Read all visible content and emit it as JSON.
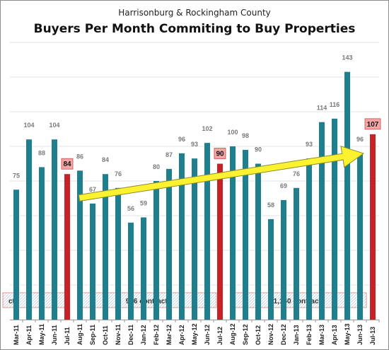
{
  "chart_data": {
    "type": "bar",
    "title": "Buyers Per Month Commiting to Buy Properties",
    "subtitle": "Harrisonburg & Rockingham County",
    "categories": [
      "Mar-11",
      "Apr-11",
      "May-11",
      "Jun-11",
      "Jul-11",
      "Aug-11",
      "Sep-11",
      "Oct-11",
      "Nov-11",
      "Dec-11",
      "Jan-12",
      "Feb-12",
      "Mar-12",
      "Apr-12",
      "May-12",
      "Jun-12",
      "Jul-12",
      "Aug-12",
      "Sep-12",
      "Oct-12",
      "Nov-12",
      "Dec-12",
      "Jan-13",
      "Feb-13",
      "Mar-13",
      "Apr-13",
      "May-13",
      "Jun-13",
      "Jul-13"
    ],
    "values": [
      75,
      104,
      88,
      104,
      84,
      86,
      67,
      84,
      76,
      56,
      59,
      80,
      87,
      96,
      93,
      102,
      90,
      100,
      98,
      90,
      58,
      69,
      76,
      93,
      114,
      116,
      143,
      96,
      107
    ],
    "value_labels": [
      "75",
      "104",
      "88",
      "104",
      "84",
      "86",
      "67",
      "84",
      "76",
      "56",
      "59",
      "80",
      "87",
      "96",
      "93",
      "102",
      "90",
      "100",
      "98",
      "90",
      "58",
      "69",
      "76",
      "93",
      "114",
      "116",
      "143",
      "96",
      "107"
    ],
    "highlighted": [
      "Jul-11",
      "Jul-12",
      "Jul-13"
    ],
    "ylim": [
      0,
      160
    ],
    "grid": true,
    "xlabel": "",
    "ylabel": "",
    "period_boxes": [
      {
        "label": "cts"
      },
      {
        "label": "976 contracts"
      },
      {
        "label": "1,160 contracts"
      }
    ],
    "colors": {
      "bar": "#1f7f8f",
      "highlight": "#c72326",
      "value_label": "#7a7a7a",
      "highlight_label_bg": "#f4a6a6",
      "arrow": "#fdf22f"
    }
  }
}
